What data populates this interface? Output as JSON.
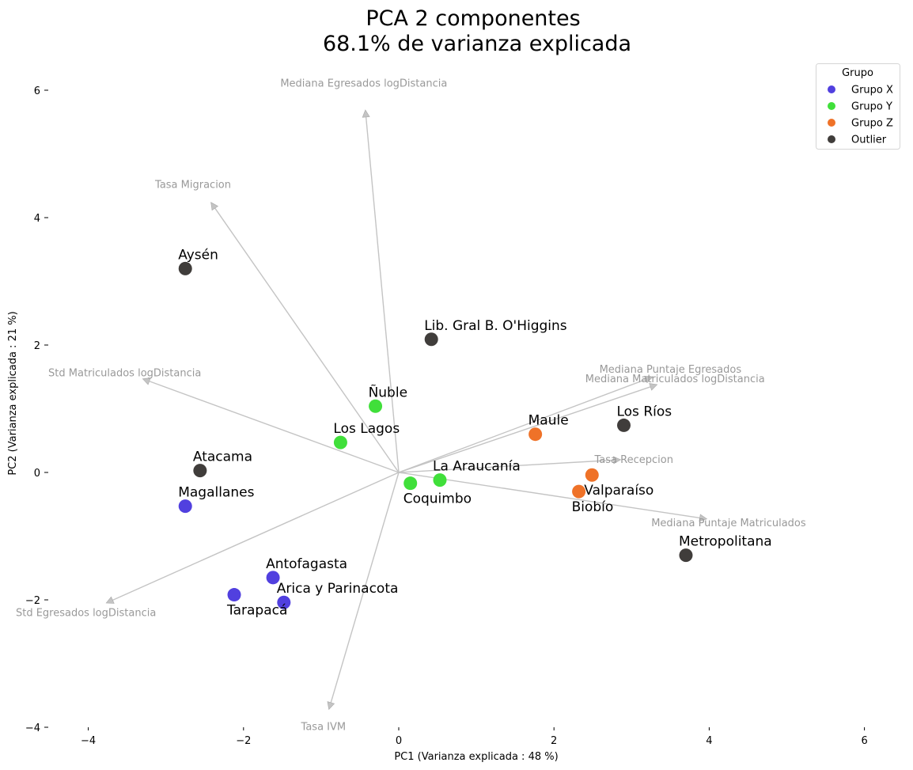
{
  "chart_data": {
    "type": "scatter",
    "title_line1": "PCA 2 componentes",
    "title_line2": "68.1% de varianza explicada",
    "xlabel": "PC1 (Varianza explicada : 48 %)",
    "ylabel": "PC2 (Varianza explicada : 21 %)",
    "xlim": [
      -4.2,
      6.2
    ],
    "ylim": [
      -4,
      6.5
    ],
    "xticks": [
      -4,
      -2,
      0,
      2,
      4,
      6
    ],
    "yticks": [
      -4,
      -2,
      0,
      2,
      4,
      6
    ],
    "grid": false,
    "legend": {
      "title": "Grupo",
      "placement": "top-right",
      "entries": [
        {
          "name": "Grupo X",
          "color": "#5140df"
        },
        {
          "name": "Grupo Y",
          "color": "#40df3a"
        },
        {
          "name": "Grupo Z",
          "color": "#ef7228"
        },
        {
          "name": "Outlier",
          "color": "#403d3b"
        }
      ]
    },
    "series": [
      {
        "name": "Grupo X",
        "color": "#5140df",
        "points": [
          {
            "label": "Magallanes",
            "x": -2.75,
            "y": -0.53,
            "pos": "above"
          },
          {
            "label": "Antofagasta",
            "x": -1.62,
            "y": -1.65,
            "pos": "above"
          },
          {
            "label": "Arica y Parinacota",
            "x": -1.48,
            "y": -2.04,
            "pos": "above"
          },
          {
            "label": "Tarapacá",
            "x": -2.12,
            "y": -1.92,
            "pos": "below"
          }
        ]
      },
      {
        "name": "Grupo Y",
        "color": "#40df3a",
        "points": [
          {
            "label": "Ñuble",
            "x": -0.3,
            "y": 1.04,
            "pos": "above"
          },
          {
            "label": "Los Lagos",
            "x": -0.75,
            "y": 0.47,
            "pos": "above"
          },
          {
            "label": "La Araucanía",
            "x": 0.53,
            "y": -0.12,
            "pos": "above"
          },
          {
            "label": "Coquimbo",
            "x": 0.15,
            "y": -0.17,
            "pos": "below"
          }
        ]
      },
      {
        "name": "Grupo Z",
        "color": "#ef7228",
        "points": [
          {
            "label": "Maule",
            "x": 1.76,
            "y": 0.6,
            "pos": "above"
          },
          {
            "label": "Valparaíso",
            "x": 2.49,
            "y": -0.04,
            "pos": "belowright"
          },
          {
            "label": "Biobío",
            "x": 2.32,
            "y": -0.3,
            "pos": "below"
          }
        ]
      },
      {
        "name": "Outlier",
        "color": "#403d3b",
        "points": [
          {
            "label": "Aysén",
            "x": -2.75,
            "y": 3.2,
            "pos": "above"
          },
          {
            "label": "Lib. Gral B. O'Higgins",
            "x": 0.42,
            "y": 2.09,
            "pos": "above"
          },
          {
            "label": "Los Ríos",
            "x": 2.9,
            "y": 0.74,
            "pos": "above"
          },
          {
            "label": "Atacama",
            "x": -2.56,
            "y": 0.03,
            "pos": "above"
          },
          {
            "label": "Metropolitana",
            "x": 3.7,
            "y": -1.3,
            "pos": "above"
          }
        ]
      }
    ],
    "loadings": [
      {
        "name": "Mediana Egresados logDistancia",
        "x": -0.43,
        "y": 5.69,
        "lx": -0.45,
        "ly": 6.12
      },
      {
        "name": "Tasa Migracion",
        "x": -2.42,
        "y": 4.24,
        "lx": -2.65,
        "ly": 4.53
      },
      {
        "name": "Std Matriculados logDistancia",
        "x": -3.3,
        "y": 1.47,
        "lx": -3.53,
        "ly": 1.57
      },
      {
        "name": "Mediana Puntaje Egresados",
        "x": 3.27,
        "y": 1.5,
        "lx": 3.5,
        "ly": 1.63
      },
      {
        "name": "Mediana Matriculados logDistancia",
        "x": 3.33,
        "y": 1.38,
        "lx": 3.56,
        "ly": 1.48
      },
      {
        "name": "Tasa Recepcion",
        "x": 2.86,
        "y": 0.2,
        "lx": 3.03,
        "ly": 0.21
      },
      {
        "name": "Mediana Puntaje Matriculados",
        "x": 3.97,
        "y": -0.73,
        "lx": 4.25,
        "ly": -0.78
      },
      {
        "name": "Std Egresados logDistancia",
        "x": -3.77,
        "y": -2.05,
        "lx": -4.03,
        "ly": -2.19
      },
      {
        "name": "Tasa IVM",
        "x": -0.9,
        "y": -3.72,
        "lx": -0.97,
        "ly": -3.98
      }
    ]
  }
}
